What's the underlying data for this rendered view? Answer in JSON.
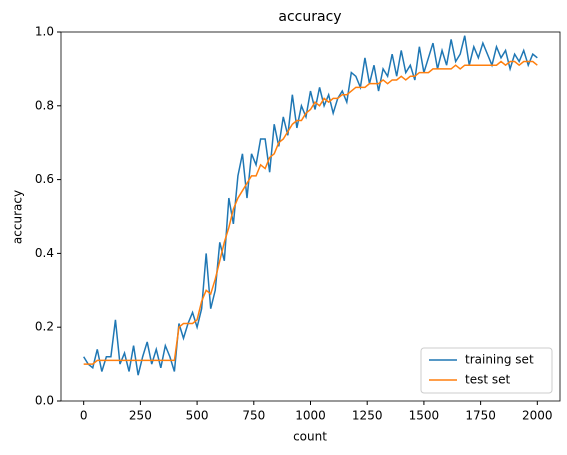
{
  "chart_data": {
    "type": "line",
    "title": "accuracy",
    "x_label": "count",
    "y_label": "accuracy",
    "x": [
      0,
      20,
      40,
      60,
      80,
      100,
      120,
      140,
      160,
      180,
      200,
      220,
      240,
      260,
      280,
      300,
      320,
      340,
      360,
      380,
      400,
      420,
      440,
      460,
      480,
      500,
      520,
      540,
      560,
      580,
      600,
      620,
      640,
      660,
      680,
      700,
      720,
      740,
      760,
      780,
      800,
      820,
      840,
      860,
      880,
      900,
      920,
      940,
      960,
      980,
      1000,
      1020,
      1040,
      1060,
      1080,
      1100,
      1120,
      1140,
      1160,
      1180,
      1200,
      1220,
      1240,
      1260,
      1280,
      1300,
      1320,
      1340,
      1360,
      1380,
      1400,
      1420,
      1440,
      1460,
      1480,
      1500,
      1520,
      1540,
      1560,
      1580,
      1600,
      1620,
      1640,
      1660,
      1680,
      1700,
      1720,
      1740,
      1760,
      1780,
      1800,
      1820,
      1840,
      1860,
      1880,
      1900,
      1920,
      1940,
      1960,
      1980,
      2000
    ],
    "series": [
      {
        "name": "training set",
        "color": "#1f77b4",
        "values": [
          0.12,
          0.1,
          0.09,
          0.14,
          0.08,
          0.12,
          0.12,
          0.22,
          0.1,
          0.13,
          0.08,
          0.15,
          0.07,
          0.12,
          0.16,
          0.1,
          0.14,
          0.09,
          0.15,
          0.12,
          0.08,
          0.21,
          0.17,
          0.21,
          0.24,
          0.2,
          0.25,
          0.4,
          0.25,
          0.3,
          0.43,
          0.38,
          0.55,
          0.48,
          0.61,
          0.67,
          0.55,
          0.67,
          0.64,
          0.71,
          0.71,
          0.62,
          0.75,
          0.69,
          0.77,
          0.72,
          0.83,
          0.74,
          0.8,
          0.77,
          0.84,
          0.79,
          0.85,
          0.8,
          0.83,
          0.78,
          0.82,
          0.84,
          0.81,
          0.89,
          0.88,
          0.85,
          0.93,
          0.86,
          0.91,
          0.84,
          0.9,
          0.88,
          0.94,
          0.88,
          0.95,
          0.89,
          0.91,
          0.87,
          0.96,
          0.89,
          0.93,
          0.97,
          0.9,
          0.95,
          0.91,
          0.98,
          0.92,
          0.94,
          0.99,
          0.91,
          0.96,
          0.93,
          0.97,
          0.94,
          0.91,
          0.96,
          0.93,
          0.95,
          0.9,
          0.94,
          0.92,
          0.95,
          0.91,
          0.94,
          0.93
        ]
      },
      {
        "name": "test set",
        "color": "#ff7f0e",
        "values": [
          0.1,
          0.1,
          0.1,
          0.11,
          0.11,
          0.11,
          0.11,
          0.11,
          0.11,
          0.11,
          0.11,
          0.11,
          0.11,
          0.11,
          0.11,
          0.11,
          0.11,
          0.11,
          0.11,
          0.11,
          0.11,
          0.2,
          0.21,
          0.21,
          0.21,
          0.22,
          0.27,
          0.3,
          0.29,
          0.33,
          0.38,
          0.43,
          0.47,
          0.52,
          0.55,
          0.57,
          0.59,
          0.61,
          0.61,
          0.64,
          0.63,
          0.66,
          0.67,
          0.7,
          0.71,
          0.73,
          0.75,
          0.76,
          0.76,
          0.78,
          0.79,
          0.81,
          0.8,
          0.82,
          0.81,
          0.82,
          0.82,
          0.83,
          0.83,
          0.84,
          0.85,
          0.85,
          0.85,
          0.86,
          0.86,
          0.86,
          0.87,
          0.86,
          0.87,
          0.87,
          0.88,
          0.87,
          0.88,
          0.88,
          0.89,
          0.89,
          0.89,
          0.9,
          0.9,
          0.9,
          0.9,
          0.9,
          0.91,
          0.9,
          0.91,
          0.91,
          0.91,
          0.91,
          0.91,
          0.91,
          0.91,
          0.91,
          0.92,
          0.91,
          0.92,
          0.92,
          0.91,
          0.92,
          0.92,
          0.92,
          0.91
        ]
      }
    ],
    "xlim": [
      -100,
      2100
    ],
    "ylim": [
      0,
      1
    ],
    "xticks": [
      0,
      250,
      500,
      750,
      1000,
      1250,
      1500,
      1750,
      2000
    ],
    "yticks": [
      {
        "value": 0,
        "label": "0.0"
      },
      {
        "value": 0.2,
        "label": "0.2"
      },
      {
        "value": 0.4,
        "label": "0.4"
      },
      {
        "value": 0.6,
        "label": "0.6"
      },
      {
        "value": 0.8,
        "label": "0.8"
      },
      {
        "value": 1,
        "label": "1.0"
      }
    ],
    "legend": "lower right"
  }
}
